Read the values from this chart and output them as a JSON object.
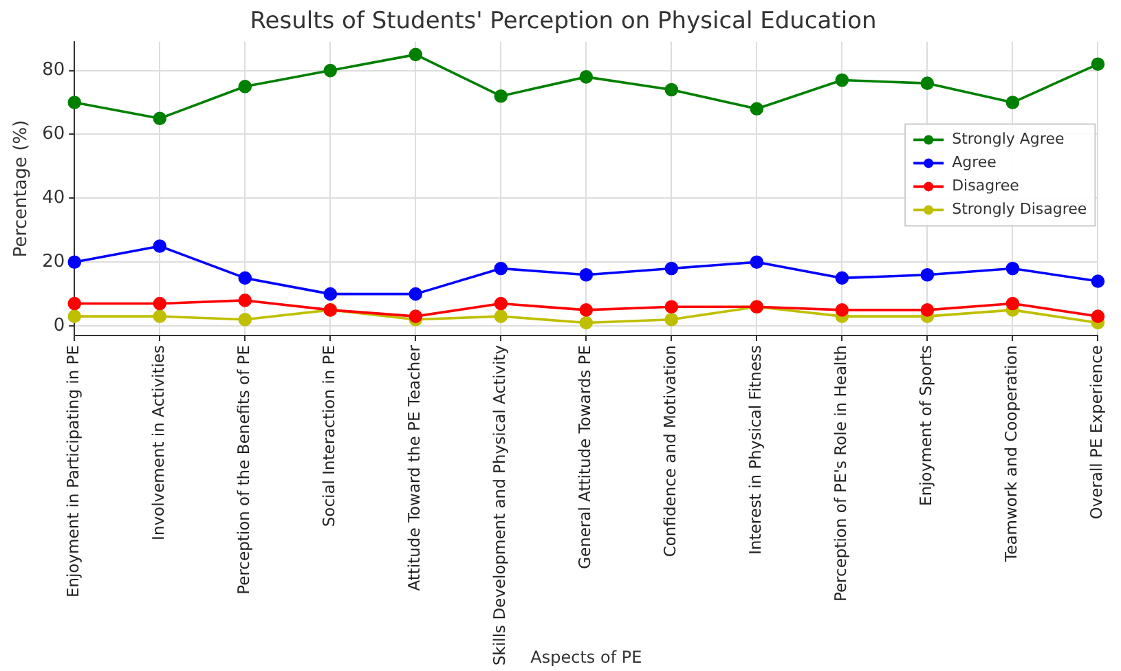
{
  "chart_data": {
    "type": "line",
    "title": "Results of Students' Perception on Physical Education",
    "xlabel": "Aspects of PE",
    "ylabel": "Percentage (%)",
    "categories": [
      "Enjoyment in Participating in PE",
      "Involvement in Activities",
      "Perception of the Benefits of PE",
      "Social Interaction in PE",
      "Attitude Toward the PE Teacher",
      "Skills Development and Physical Activity",
      "General Attitude Towards PE",
      "Confidence and Motivation",
      "Interest in Physical Fitness",
      "Perception of PE's Role in Health",
      "Enjoyment of Sports",
      "Teamwork and Cooperation",
      "Overall PE Experience"
    ],
    "series": [
      {
        "name": "Strongly Agree",
        "color": "#008000",
        "values": [
          70,
          65,
          75,
          80,
          85,
          72,
          78,
          74,
          68,
          77,
          76,
          70,
          82
        ]
      },
      {
        "name": "Agree",
        "color": "#0000ff",
        "values": [
          20,
          25,
          15,
          10,
          10,
          18,
          16,
          18,
          20,
          15,
          16,
          18,
          14
        ]
      },
      {
        "name": "Disagree",
        "color": "#ff0000",
        "values": [
          7,
          7,
          8,
          5,
          3,
          7,
          5,
          6,
          6,
          5,
          5,
          7,
          3
        ]
      },
      {
        "name": "Strongly Disagree",
        "color": "#bfbf00",
        "values": [
          3,
          3,
          2,
          5,
          2,
          3,
          1,
          2,
          6,
          3,
          3,
          5,
          1
        ]
      }
    ],
    "ylim": [
      -3,
      89
    ],
    "yticks": [
      0,
      20,
      40,
      60,
      80
    ],
    "grid": true,
    "legend": "right",
    "marker": "circle",
    "line_style": "solid"
  }
}
